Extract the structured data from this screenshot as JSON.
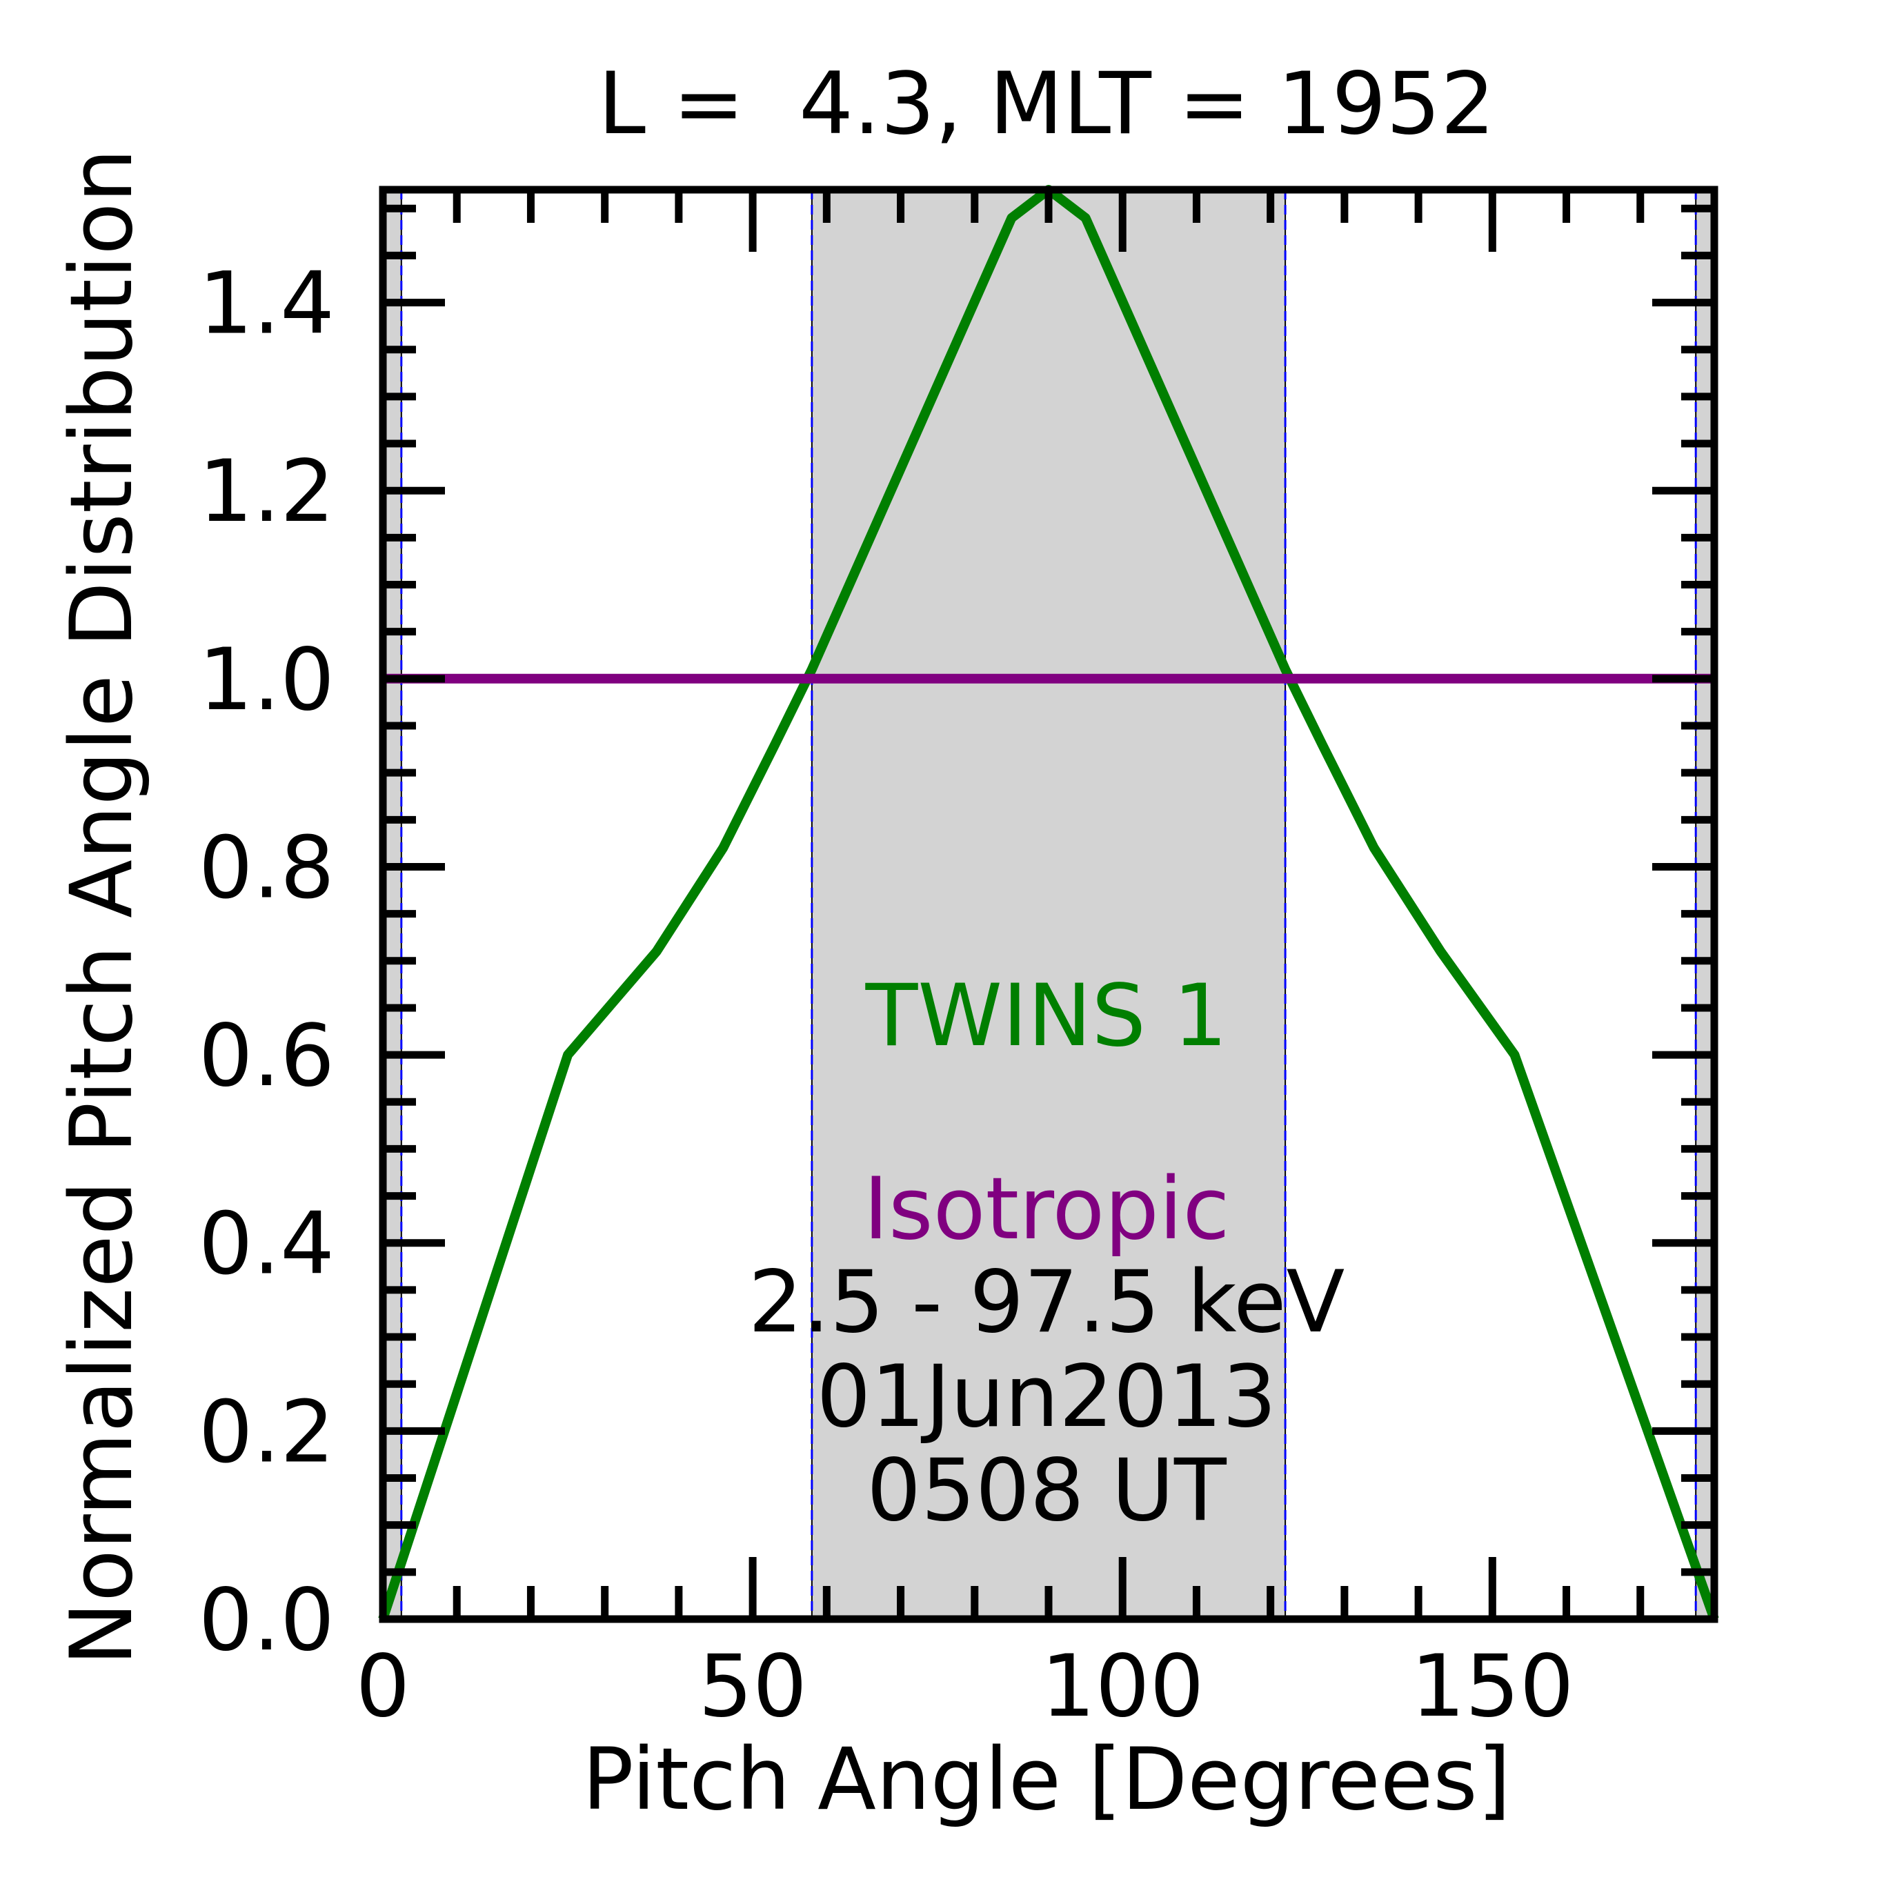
{
  "chart_data": {
    "type": "line",
    "title": "L =  4.3, MLT = 1952",
    "xlabel": "Pitch Angle [Degrees]",
    "ylabel": "Normalized Pitch Angle Distribution",
    "xlim": [
      0,
      180
    ],
    "ylim": [
      0,
      1.52
    ],
    "xticks": [
      {
        "value": 0,
        "label": "0"
      },
      {
        "value": 50,
        "label": "50"
      },
      {
        "value": 100,
        "label": "100"
      },
      {
        "value": 150,
        "label": "150"
      }
    ],
    "yticks": [
      {
        "value": 0.0,
        "label": "0.0"
      },
      {
        "value": 0.2,
        "label": "0.2"
      },
      {
        "value": 0.4,
        "label": "0.4"
      },
      {
        "value": 0.6,
        "label": "0.6"
      },
      {
        "value": 0.8,
        "label": "0.8"
      },
      {
        "value": 1.0,
        "label": "1.0"
      },
      {
        "value": 1.2,
        "label": "1.2"
      },
      {
        "value": 1.4,
        "label": "1.4"
      }
    ],
    "shaded_regions": [
      {
        "x": [
          0,
          2.5
        ],
        "color": "#d3d3d3"
      },
      {
        "x": [
          58,
          122
        ],
        "color": "#d3d3d3"
      },
      {
        "x": [
          177.5,
          180
        ],
        "color": "#d3d3d3"
      }
    ],
    "vertical_lines": [
      {
        "x": 2.5,
        "color": "#0000ff"
      },
      {
        "x": 58,
        "color": "#0000ff"
      },
      {
        "x": 122,
        "color": "#0000ff"
      },
      {
        "x": 177.5,
        "color": "#0000ff"
      }
    ],
    "series": [
      {
        "name": "TWINS 1",
        "color": "#007f00",
        "x": [
          0,
          25,
          37,
          46,
          53,
          58,
          67,
          76,
          85,
          90,
          95,
          104,
          113,
          122,
          127,
          134,
          143,
          153,
          180
        ],
        "y": [
          0.0,
          0.6,
          0.71,
          0.82,
          0.93,
          1.01,
          1.17,
          1.33,
          1.49,
          1.52,
          1.49,
          1.33,
          1.17,
          1.01,
          0.93,
          0.82,
          0.71,
          0.6,
          0.0
        ]
      },
      {
        "name": "Isotropic",
        "color": "#800080",
        "x": [
          0,
          180
        ],
        "y": [
          1.0,
          1.0
        ]
      }
    ],
    "annotations": [
      {
        "text": "TWINS 1",
        "color": "#007f00"
      },
      {
        "text": "Isotropic",
        "color": "#800080"
      },
      {
        "text": "2.5 - 97.5 keV",
        "color": "#000000"
      },
      {
        "text": "01Jun2013",
        "color": "#000000"
      },
      {
        "text": "0508 UT",
        "color": "#000000"
      }
    ]
  }
}
